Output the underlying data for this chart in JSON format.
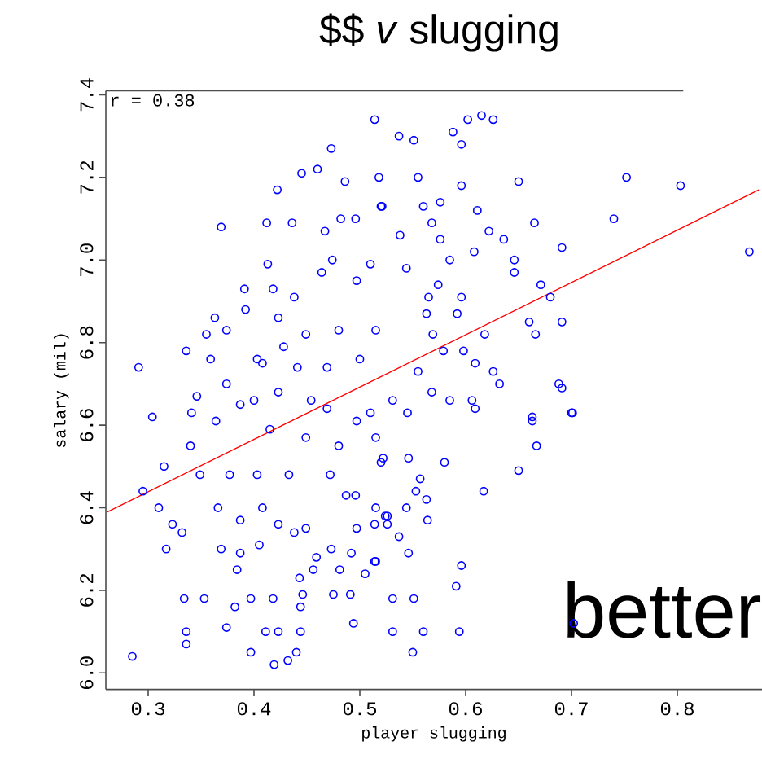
{
  "chart_data": {
    "type": "scatter",
    "title": "$$ *v* slugging",
    "xlabel": "player slugging",
    "ylabel": "salary (mil)",
    "annotations": [
      "r = 0.38",
      "better"
    ],
    "xlim": [
      0.26,
      0.88
    ],
    "ylim": [
      5.96,
      7.41
    ],
    "xticks": [
      0.3,
      0.4,
      0.5,
      0.6,
      0.7,
      0.8
    ],
    "yticks": [
      {
        "value": 6.0,
        "label": "6.0"
      },
      6.2,
      6.4,
      6.6,
      6.8,
      {
        "value": 7.0,
        "label": "7.0"
      },
      7.2,
      7.4
    ],
    "marker": "circle",
    "grid": false,
    "series": [
      {
        "color": "#0000ff",
        "x": [
          0.291,
          0.514,
          0.473,
          0.46,
          0.445,
          0.422,
          0.486,
          0.518,
          0.369,
          0.412,
          0.436,
          0.467,
          0.482,
          0.496,
          0.52,
          0.413,
          0.474,
          0.391,
          0.418,
          0.392,
          0.363,
          0.355,
          0.374,
          0.336,
          0.359,
          0.403,
          0.423,
          0.438,
          0.464,
          0.497,
          0.51,
          0.449,
          0.48,
          0.515,
          0.441,
          0.469,
          0.5,
          0.346,
          0.374,
          0.387,
          0.423,
          0.469,
          0.51,
          0.408,
          0.428,
          0.615,
          0.626,
          0.602,
          0.588,
          0.596,
          0.537,
          0.551,
          0.555,
          0.596,
          0.65,
          0.752,
          0.803,
          0.74,
          0.868,
          0.665,
          0.691,
          0.646,
          0.646,
          0.671,
          0.68,
          0.691,
          0.66,
          0.666,
          0.618,
          0.609,
          0.626,
          0.632,
          0.688,
          0.691,
          0.701,
          0.663,
          0.609,
          0.568,
          0.585,
          0.636,
          0.608,
          0.622,
          0.611,
          0.576,
          0.56,
          0.568,
          0.576,
          0.585,
          0.544,
          0.574,
          0.565,
          0.592,
          0.563,
          0.596,
          0.569,
          0.579,
          0.598,
          0.555,
          0.538,
          0.521,
          0.285,
          0.336,
          0.336,
          0.334,
          0.353,
          0.374,
          0.397,
          0.397,
          0.384,
          0.382,
          0.411,
          0.419,
          0.432,
          0.423,
          0.44,
          0.444,
          0.444,
          0.446,
          0.443,
          0.418,
          0.475,
          0.491,
          0.494,
          0.505,
          0.456,
          0.481,
          0.492,
          0.473,
          0.459,
          0.438,
          0.449,
          0.423,
          0.408,
          0.387,
          0.369,
          0.387,
          0.405,
          0.366,
          0.317,
          0.332,
          0.323,
          0.31,
          0.295,
          0.315,
          0.349,
          0.34,
          0.304,
          0.341,
          0.364,
          0.377,
          0.403,
          0.433,
          0.415,
          0.449,
          0.48,
          0.497,
          0.515,
          0.52,
          0.472,
          0.487,
          0.496,
          0.515,
          0.497,
          0.514,
          0.514,
          0.524,
          0.454,
          0.4,
          0.531,
          0.545,
          0.606,
          0.663,
          0.7,
          0.667,
          0.65,
          0.617,
          0.58,
          0.546,
          0.522,
          0.557,
          0.553,
          0.563,
          0.544,
          0.564,
          0.526,
          0.526,
          0.537,
          0.546,
          0.596,
          0.591,
          0.531,
          0.551,
          0.531,
          0.56,
          0.594,
          0.55,
          0.702,
          0.515
        ],
        "values": [
          6.74,
          7.34,
          7.27,
          7.22,
          7.21,
          7.17,
          7.19,
          7.2,
          7.08,
          7.09,
          7.09,
          7.07,
          7.1,
          7.1,
          7.13,
          6.99,
          7.0,
          6.93,
          6.93,
          6.88,
          6.86,
          6.82,
          6.83,
          6.78,
          6.76,
          6.76,
          6.86,
          6.91,
          6.97,
          6.95,
          6.99,
          6.82,
          6.83,
          6.83,
          6.74,
          6.74,
          6.76,
          6.67,
          6.7,
          6.65,
          6.68,
          6.64,
          6.63,
          6.75,
          6.79,
          7.35,
          7.34,
          7.34,
          7.31,
          7.28,
          7.3,
          7.29,
          7.2,
          7.18,
          7.19,
          7.2,
          7.18,
          7.1,
          7.02,
          7.09,
          7.03,
          7.0,
          6.97,
          6.94,
          6.91,
          6.85,
          6.85,
          6.82,
          6.82,
          6.75,
          6.73,
          6.7,
          6.7,
          6.69,
          6.63,
          6.62,
          6.64,
          6.68,
          6.66,
          7.05,
          7.02,
          7.07,
          7.12,
          7.14,
          7.13,
          7.09,
          7.05,
          7.0,
          6.98,
          6.94,
          6.91,
          6.87,
          6.87,
          6.91,
          6.82,
          6.78,
          6.78,
          6.73,
          7.06,
          7.13,
          6.04,
          6.07,
          6.1,
          6.18,
          6.18,
          6.11,
          6.05,
          6.18,
          6.25,
          6.16,
          6.1,
          6.02,
          6.03,
          6.1,
          6.05,
          6.1,
          6.16,
          6.19,
          6.23,
          6.18,
          6.19,
          6.19,
          6.12,
          6.24,
          6.25,
          6.25,
          6.29,
          6.3,
          6.28,
          6.34,
          6.35,
          6.36,
          6.4,
          6.37,
          6.3,
          6.29,
          6.31,
          6.4,
          6.3,
          6.34,
          6.36,
          6.4,
          6.44,
          6.5,
          6.48,
          6.55,
          6.62,
          6.63,
          6.61,
          6.48,
          6.48,
          6.48,
          6.59,
          6.57,
          6.55,
          6.61,
          6.57,
          6.51,
          6.48,
          6.43,
          6.43,
          6.4,
          6.35,
          6.36,
          6.27,
          6.38,
          6.66,
          6.66,
          6.66,
          6.63,
          6.66,
          6.61,
          6.63,
          6.55,
          6.49,
          6.44,
          6.51,
          6.52,
          6.52,
          6.47,
          6.44,
          6.42,
          6.4,
          6.37,
          6.38,
          6.36,
          6.33,
          6.29,
          6.26,
          6.21,
          6.18,
          6.18,
          6.1,
          6.1,
          6.1,
          6.05,
          6.12,
          6.27
        ]
      },
      {
        "type": "line",
        "color": "#ff0000",
        "marker": "none",
        "line_style": "solid",
        "x": [
          0.2615,
          0.877
        ],
        "values": [
          6.39,
          7.17
        ]
      }
    ]
  }
}
